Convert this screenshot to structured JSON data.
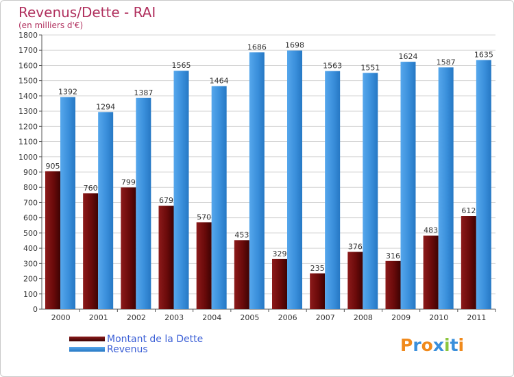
{
  "header": {
    "title": "Revenus/Dette - RAI",
    "subtitle": "(en milliers d'€)"
  },
  "chart_data": {
    "type": "bar",
    "categories": [
      "2000",
      "2001",
      "2002",
      "2003",
      "2004",
      "2005",
      "2006",
      "2007",
      "2008",
      "2009",
      "2010",
      "2011"
    ],
    "series": [
      {
        "name": "Montant de la Dette",
        "color": "#7a0d0d",
        "values": [
          905,
          760,
          799,
          679,
          570,
          453,
          329,
          235,
          376,
          316,
          483,
          612
        ]
      },
      {
        "name": "Revenus",
        "color": "#3a8fdb",
        "values": [
          1392,
          1294,
          1387,
          1565,
          1464,
          1686,
          1698,
          1563,
          1551,
          1624,
          1587,
          1635
        ]
      }
    ],
    "ylim": [
      0,
      1800
    ],
    "yticks": [
      0,
      100,
      200,
      300,
      400,
      500,
      600,
      700,
      800,
      900,
      1000,
      1100,
      1200,
      1300,
      1400,
      1500,
      1600,
      1700,
      1800
    ],
    "grid": true,
    "legend_position": "bottom-left"
  },
  "logo": {
    "letters": [
      "P",
      "r",
      "o",
      "x",
      "i",
      "t",
      "i"
    ],
    "colors": [
      "#f08a1c",
      "#3a8fdb",
      "#f08a1c",
      "#3a8fdb",
      "#8cc63f",
      "#3a8fdb",
      "#f08a1c"
    ]
  }
}
